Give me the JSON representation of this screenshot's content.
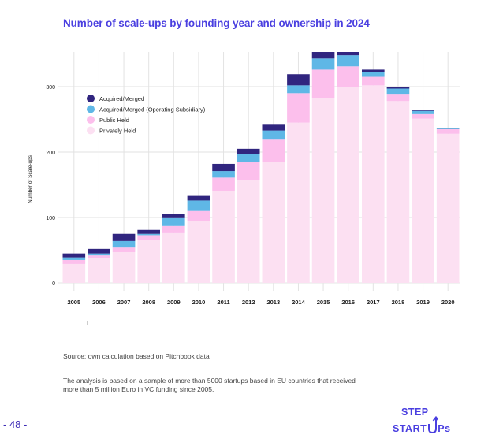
{
  "page": {
    "title": "Number of scale-ups by founding year and ownership in 2024",
    "source": "Source: own calculation based on Pitchbook data",
    "note_line1": "The analysis is based on a sample of more than 5000 startups based in EU countries that received",
    "note_line2": "more than 5 million Euro in VC funding since 2005.",
    "page_number": "- 48 -",
    "logo_line1": "STEP",
    "logo_line2": "START",
    "logo_suffix": "Ps"
  },
  "chart_data": {
    "type": "bar",
    "stacked": true,
    "title": "Number of scale-ups by founding year and ownership in 2024",
    "xlabel": "",
    "ylabel": "Number of Scale-ups",
    "ylim": [
      0,
      355
    ],
    "yticks": [
      0,
      100,
      200,
      300
    ],
    "grid": true,
    "legend_position": "top-left",
    "categories": [
      "2005",
      "2006",
      "2007",
      "2008",
      "2009",
      "2010",
      "2011",
      "2012",
      "2013",
      "2014",
      "2015",
      "2016",
      "2017",
      "2018",
      "2019",
      "2020"
    ],
    "series": [
      {
        "name": "Privately Held",
        "color": "#fce0f2",
        "values": [
          29,
          38,
          47,
          66,
          76,
          94,
          141,
          157,
          185,
          245,
          283,
          300,
          302,
          278,
          251,
          228
        ]
      },
      {
        "name": "Public Held",
        "color": "#fcbfec",
        "values": [
          6,
          4,
          7,
          7,
          11,
          16,
          20,
          28,
          34,
          45,
          43,
          31,
          13,
          11,
          7,
          7
        ]
      },
      {
        "name": "Acquired/Merged (Operating Subsidiary)",
        "color": "#5fb7e6",
        "values": [
          4,
          3,
          10,
          2,
          12,
          16,
          10,
          12,
          14,
          12,
          17,
          17,
          7,
          8,
          5,
          1
        ]
      },
      {
        "name": "Acquired/Merged",
        "color": "#30257f",
        "values": [
          6,
          7,
          11,
          6,
          7,
          7,
          11,
          8,
          10,
          17,
          10,
          5,
          4,
          2,
          2,
          1
        ]
      }
    ],
    "legend_order": [
      "Acquired/Merged",
      "Acquired/Merged (Operating Subsidiary)",
      "Public Held",
      "Privately Held"
    ]
  }
}
